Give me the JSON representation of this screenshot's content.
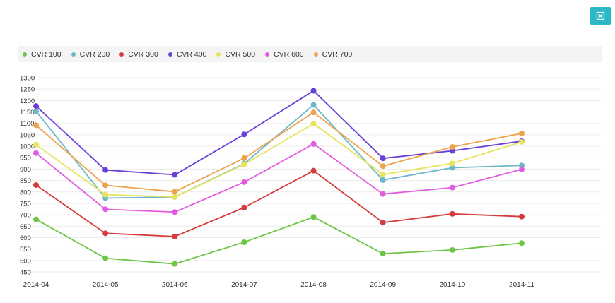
{
  "toolbar": {
    "export_icon": "export-icon"
  },
  "colors": {
    "CVR 100": "#6cc644",
    "CVR 200": "#6bb6c9",
    "CVR 300": "#d63a3a",
    "CVR 400": "#6a3fd9",
    "CVR 500": "#e8e35a",
    "CVR 600": "#e35be0",
    "CVR 700": "#eea24d"
  },
  "chart_data": {
    "type": "line",
    "categories": [
      "2014-04",
      "2014-05",
      "2014-06",
      "2014-07",
      "2014-08",
      "2014-09",
      "2014-10",
      "2014-11"
    ],
    "series": [
      {
        "name": "CVR 100",
        "values": [
          680,
          510,
          485,
          580,
          690,
          530,
          546,
          576
        ]
      },
      {
        "name": "CVR 200",
        "values": [
          1153,
          773,
          778,
          924,
          1181,
          852,
          906,
          916
        ]
      },
      {
        "name": "CVR 300",
        "values": [
          830,
          619,
          605,
          732,
          893,
          666,
          704,
          692
        ]
      },
      {
        "name": "CVR 400",
        "values": [
          1176,
          896,
          875,
          1052,
          1243,
          947,
          980,
          1022
        ]
      },
      {
        "name": "CVR 500",
        "values": [
          1007,
          788,
          778,
          921,
          1099,
          876,
          925,
          1019
        ]
      },
      {
        "name": "CVR 600",
        "values": [
          970,
          724,
          712,
          843,
          1010,
          791,
          819,
          899
        ]
      },
      {
        "name": "CVR 700",
        "values": [
          1092,
          829,
          801,
          948,
          1148,
          913,
          997,
          1056
        ]
      }
    ],
    "y_ticks": [
      450,
      500,
      550,
      600,
      650,
      700,
      750,
      800,
      850,
      900,
      950,
      1000,
      1050,
      1100,
      1150,
      1200,
      1250,
      1300
    ],
    "ylim": [
      450,
      1300
    ],
    "grid": true,
    "legend": "top-left"
  }
}
